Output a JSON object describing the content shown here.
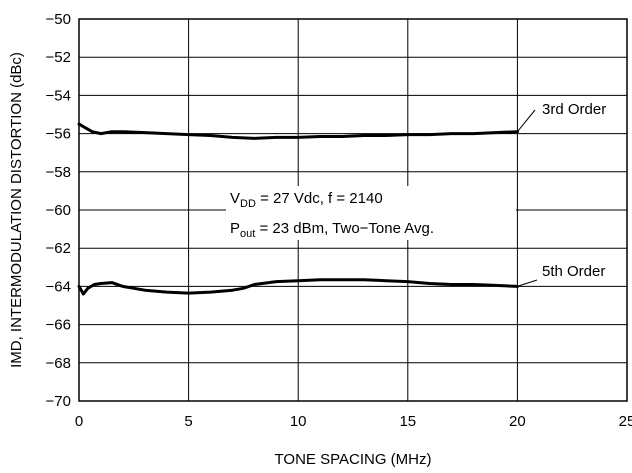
{
  "chart_data": {
    "type": "line",
    "xlabel": "TONE SPACING (MHz)",
    "ylabel": "IMD, INTERMODULATION DISTORTION (dBc)",
    "xlim": [
      0,
      25
    ],
    "ylim": [
      -70,
      -50
    ],
    "xticks": [
      "0",
      "5",
      "10",
      "15",
      "20",
      "25"
    ],
    "yticks": [
      "−50",
      "−52",
      "−54",
      "−56",
      "−58",
      "−60",
      "−62",
      "−64",
      "−66",
      "−68",
      "−70"
    ],
    "grid": true,
    "series": [
      {
        "name": "3rd Order",
        "x": [
          0,
          0.3,
          0.6,
          1.0,
          1.5,
          2,
          3,
          4,
          5,
          6,
          7,
          8,
          9,
          10,
          11,
          12,
          13,
          14,
          15,
          16,
          17,
          18,
          19,
          20
        ],
        "y": [
          -55.5,
          -55.7,
          -55.9,
          -56.0,
          -55.9,
          -55.9,
          -55.95,
          -56.0,
          -56.05,
          -56.1,
          -56.2,
          -56.25,
          -56.2,
          -56.2,
          -56.15,
          -56.15,
          -56.1,
          -56.1,
          -56.05,
          -56.05,
          -56.0,
          -56.0,
          -55.95,
          -55.9
        ]
      },
      {
        "name": "5th Order",
        "x": [
          0,
          0.2,
          0.4,
          0.7,
          1.0,
          1.5,
          2,
          3,
          4,
          5,
          6,
          7,
          7.5,
          8,
          9,
          10,
          11,
          12,
          13,
          14,
          15,
          16,
          17,
          18,
          19,
          20
        ],
        "y": [
          -64.0,
          -64.4,
          -64.1,
          -63.9,
          -63.85,
          -63.8,
          -64.0,
          -64.2,
          -64.3,
          -64.35,
          -64.3,
          -64.2,
          -64.1,
          -63.9,
          -63.75,
          -63.7,
          -63.65,
          -63.65,
          -63.65,
          -63.7,
          -63.75,
          -63.85,
          -63.9,
          -63.9,
          -63.95,
          -64.0
        ]
      }
    ],
    "annotations": {
      "conditions_line1_main": "V",
      "conditions_line1_sub": "DD",
      "conditions_line1_rest": " = 27 Vdc, f = 2140",
      "conditions_line2_main": "P",
      "conditions_line2_sub": "out",
      "conditions_line2_rest": " = 23 dBm, Two−Tone Avg."
    }
  }
}
